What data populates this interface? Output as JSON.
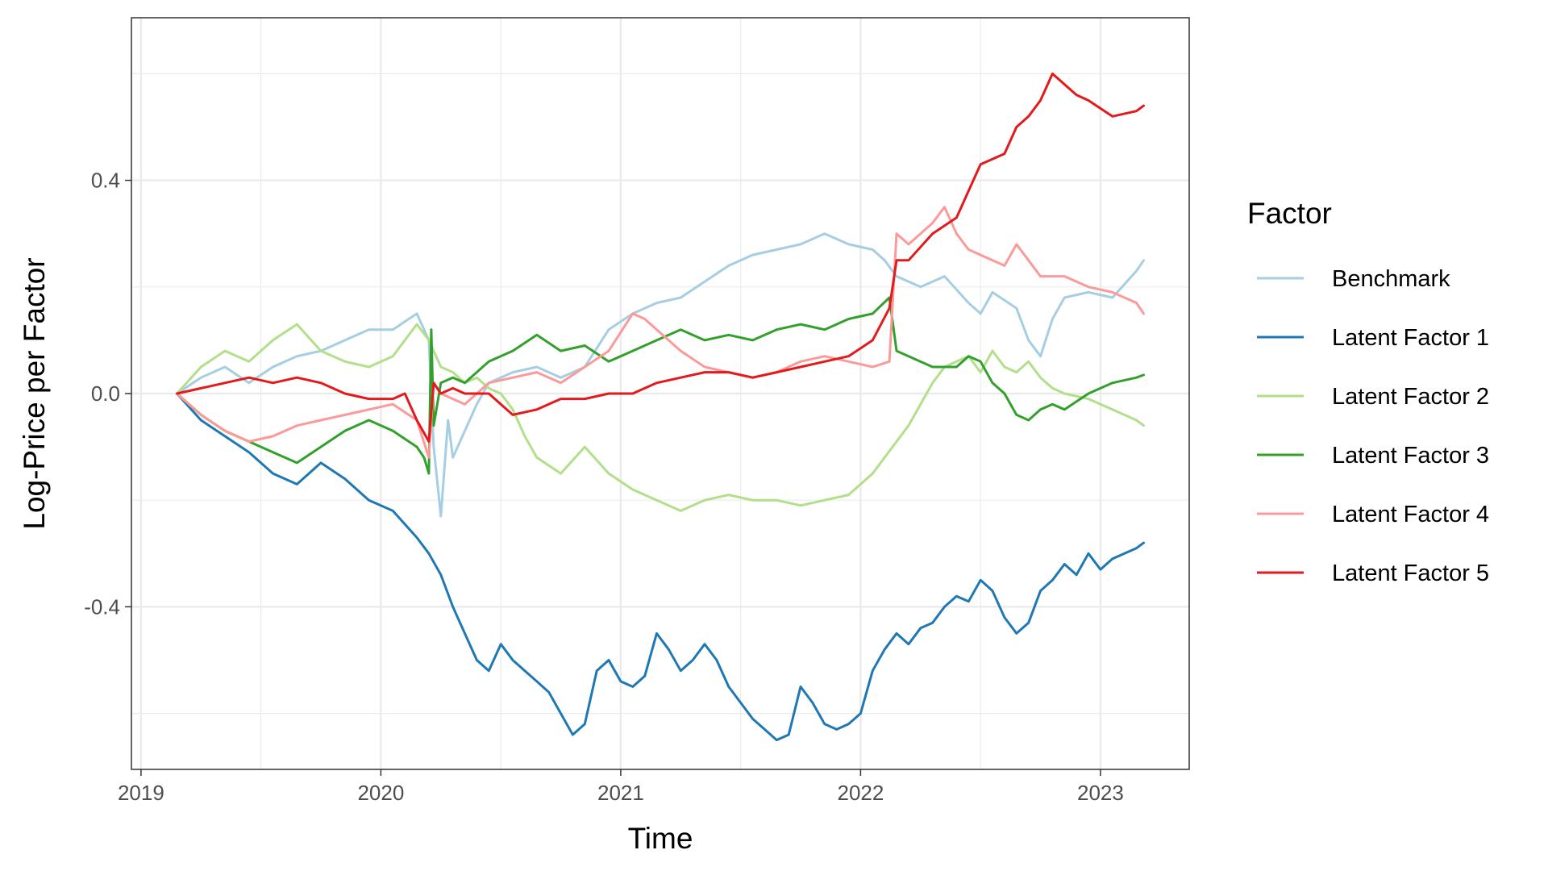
{
  "chart_data": {
    "type": "line",
    "title": "",
    "xlabel": "Time",
    "ylabel": "Log-Price per Factor",
    "x_ticks": [
      "2019",
      "2020",
      "2021",
      "2022",
      "2023"
    ],
    "x_tick_values": [
      2019.0,
      2020.0,
      2021.0,
      2022.0,
      2023.0
    ],
    "y_ticks": [
      "-0.4",
      "0.0",
      "0.4"
    ],
    "y_tick_values": [
      -0.4,
      0.0,
      0.4
    ],
    "xlim": [
      2018.96,
      2023.37
    ],
    "ylim": [
      -0.705,
      0.705
    ],
    "grid": true,
    "legend": {
      "title": "Factor",
      "position": "right"
    },
    "series": [
      {
        "name": "Benchmark",
        "color": "#a6cee3",
        "x": [
          2019.15,
          2019.25,
          2019.35,
          2019.45,
          2019.55,
          2019.65,
          2019.75,
          2019.85,
          2019.95,
          2020.05,
          2020.15,
          2020.2,
          2020.22,
          2020.25,
          2020.28,
          2020.3,
          2020.35,
          2020.4,
          2020.45,
          2020.55,
          2020.65,
          2020.75,
          2020.85,
          2020.95,
          2021.05,
          2021.15,
          2021.25,
          2021.35,
          2021.45,
          2021.55,
          2021.65,
          2021.75,
          2021.85,
          2021.95,
          2022.05,
          2022.1,
          2022.15,
          2022.25,
          2022.35,
          2022.45,
          2022.5,
          2022.55,
          2022.65,
          2022.7,
          2022.75,
          2022.8,
          2022.85,
          2022.95,
          2023.05,
          2023.15,
          2023.18
        ],
        "y": [
          0.0,
          0.03,
          0.05,
          0.02,
          0.05,
          0.07,
          0.08,
          0.1,
          0.12,
          0.12,
          0.15,
          0.1,
          -0.1,
          -0.23,
          -0.05,
          -0.12,
          -0.07,
          -0.02,
          0.02,
          0.04,
          0.05,
          0.03,
          0.05,
          0.12,
          0.15,
          0.17,
          0.18,
          0.21,
          0.24,
          0.26,
          0.27,
          0.28,
          0.3,
          0.28,
          0.27,
          0.25,
          0.22,
          0.2,
          0.22,
          0.17,
          0.15,
          0.19,
          0.16,
          0.1,
          0.07,
          0.14,
          0.18,
          0.19,
          0.18,
          0.23,
          0.25
        ]
      },
      {
        "name": "Latent Factor 1",
        "color": "#1f78b4",
        "x": [
          2019.15,
          2019.25,
          2019.35,
          2019.45,
          2019.55,
          2019.65,
          2019.75,
          2019.85,
          2019.95,
          2020.05,
          2020.15,
          2020.2,
          2020.25,
          2020.3,
          2020.35,
          2020.4,
          2020.45,
          2020.5,
          2020.55,
          2020.6,
          2020.65,
          2020.7,
          2020.75,
          2020.8,
          2020.85,
          2020.9,
          2020.95,
          2021.0,
          2021.05,
          2021.1,
          2021.15,
          2021.2,
          2021.25,
          2021.3,
          2021.35,
          2021.4,
          2021.45,
          2021.5,
          2021.55,
          2021.6,
          2021.65,
          2021.7,
          2021.75,
          2021.8,
          2021.85,
          2021.9,
          2021.95,
          2022.0,
          2022.05,
          2022.1,
          2022.15,
          2022.2,
          2022.25,
          2022.3,
          2022.35,
          2022.4,
          2022.45,
          2022.5,
          2022.55,
          2022.6,
          2022.65,
          2022.7,
          2022.75,
          2022.8,
          2022.85,
          2022.9,
          2022.95,
          2023.0,
          2023.05,
          2023.1,
          2023.15,
          2023.18
        ],
        "y": [
          0.0,
          -0.05,
          -0.08,
          -0.11,
          -0.15,
          -0.17,
          -0.13,
          -0.16,
          -0.2,
          -0.22,
          -0.27,
          -0.3,
          -0.34,
          -0.4,
          -0.45,
          -0.5,
          -0.52,
          -0.47,
          -0.5,
          -0.52,
          -0.54,
          -0.56,
          -0.6,
          -0.64,
          -0.62,
          -0.52,
          -0.5,
          -0.54,
          -0.55,
          -0.53,
          -0.45,
          -0.48,
          -0.52,
          -0.5,
          -0.47,
          -0.5,
          -0.55,
          -0.58,
          -0.61,
          -0.63,
          -0.65,
          -0.64,
          -0.55,
          -0.58,
          -0.62,
          -0.63,
          -0.62,
          -0.6,
          -0.52,
          -0.48,
          -0.45,
          -0.47,
          -0.44,
          -0.43,
          -0.4,
          -0.38,
          -0.39,
          -0.35,
          -0.37,
          -0.42,
          -0.45,
          -0.43,
          -0.37,
          -0.35,
          -0.32,
          -0.34,
          -0.3,
          -0.33,
          -0.31,
          -0.3,
          -0.29,
          -0.28
        ]
      },
      {
        "name": "Latent Factor 2",
        "color": "#b2df8a",
        "x": [
          2019.15,
          2019.25,
          2019.35,
          2019.45,
          2019.55,
          2019.65,
          2019.75,
          2019.85,
          2019.95,
          2020.05,
          2020.15,
          2020.2,
          2020.25,
          2020.3,
          2020.35,
          2020.4,
          2020.45,
          2020.5,
          2020.55,
          2020.6,
          2020.65,
          2020.75,
          2020.85,
          2020.95,
          2021.05,
          2021.15,
          2021.25,
          2021.35,
          2021.45,
          2021.55,
          2021.65,
          2021.75,
          2021.85,
          2021.95,
          2022.0,
          2022.05,
          2022.1,
          2022.15,
          2022.2,
          2022.25,
          2022.3,
          2022.35,
          2022.4,
          2022.45,
          2022.5,
          2022.55,
          2022.6,
          2022.65,
          2022.7,
          2022.75,
          2022.8,
          2022.85,
          2022.95,
          2023.05,
          2023.15,
          2023.18
        ],
        "y": [
          0.0,
          0.05,
          0.08,
          0.06,
          0.1,
          0.13,
          0.08,
          0.06,
          0.05,
          0.07,
          0.13,
          0.1,
          0.05,
          0.04,
          0.02,
          0.03,
          0.01,
          0.0,
          -0.03,
          -0.08,
          -0.12,
          -0.15,
          -0.1,
          -0.15,
          -0.18,
          -0.2,
          -0.22,
          -0.2,
          -0.19,
          -0.2,
          -0.2,
          -0.21,
          -0.2,
          -0.19,
          -0.17,
          -0.15,
          -0.12,
          -0.09,
          -0.06,
          -0.02,
          0.02,
          0.05,
          0.06,
          0.07,
          0.04,
          0.08,
          0.05,
          0.04,
          0.06,
          0.03,
          0.01,
          0.0,
          -0.01,
          -0.03,
          -0.05,
          -0.06
        ]
      },
      {
        "name": "Latent Factor 3",
        "color": "#33a02c",
        "x": [
          2019.15,
          2019.25,
          2019.35,
          2019.45,
          2019.55,
          2019.65,
          2019.75,
          2019.85,
          2019.95,
          2020.05,
          2020.15,
          2020.18,
          2020.2,
          2020.21,
          2020.22,
          2020.25,
          2020.3,
          2020.35,
          2020.45,
          2020.55,
          2020.65,
          2020.75,
          2020.85,
          2020.95,
          2021.05,
          2021.15,
          2021.25,
          2021.35,
          2021.45,
          2021.55,
          2021.65,
          2021.75,
          2021.85,
          2021.95,
          2022.05,
          2022.12,
          2022.15,
          2022.2,
          2022.3,
          2022.4,
          2022.45,
          2022.5,
          2022.55,
          2022.6,
          2022.65,
          2022.7,
          2022.75,
          2022.8,
          2022.85,
          2022.95,
          2023.05,
          2023.15,
          2023.18
        ],
        "y": [
          0.0,
          -0.04,
          -0.07,
          -0.09,
          -0.11,
          -0.13,
          -0.1,
          -0.07,
          -0.05,
          -0.07,
          -0.1,
          -0.12,
          -0.15,
          0.12,
          -0.06,
          0.02,
          0.03,
          0.02,
          0.06,
          0.08,
          0.11,
          0.08,
          0.09,
          0.06,
          0.08,
          0.1,
          0.12,
          0.1,
          0.11,
          0.1,
          0.12,
          0.13,
          0.12,
          0.14,
          0.15,
          0.18,
          0.08,
          0.07,
          0.05,
          0.05,
          0.07,
          0.06,
          0.02,
          0.0,
          -0.04,
          -0.05,
          -0.03,
          -0.02,
          -0.03,
          0.0,
          0.02,
          0.03,
          0.035
        ]
      },
      {
        "name": "Latent Factor 4",
        "color": "#fb9a99",
        "x": [
          2019.15,
          2019.25,
          2019.35,
          2019.45,
          2019.55,
          2019.65,
          2019.75,
          2019.85,
          2019.95,
          2020.05,
          2020.15,
          2020.2,
          2020.22,
          2020.25,
          2020.3,
          2020.35,
          2020.45,
          2020.55,
          2020.65,
          2020.75,
          2020.85,
          2020.95,
          2021.05,
          2021.1,
          2021.15,
          2021.25,
          2021.35,
          2021.45,
          2021.55,
          2021.65,
          2021.75,
          2021.85,
          2021.95,
          2022.05,
          2022.12,
          2022.15,
          2022.2,
          2022.3,
          2022.35,
          2022.4,
          2022.45,
          2022.5,
          2022.55,
          2022.6,
          2022.65,
          2022.7,
          2022.75,
          2022.85,
          2022.95,
          2023.05,
          2023.15,
          2023.18
        ],
        "y": [
          0.0,
          -0.04,
          -0.07,
          -0.09,
          -0.08,
          -0.06,
          -0.05,
          -0.04,
          -0.03,
          -0.02,
          -0.05,
          -0.12,
          0.02,
          0.0,
          -0.01,
          -0.02,
          0.02,
          0.03,
          0.04,
          0.02,
          0.05,
          0.08,
          0.15,
          0.14,
          0.12,
          0.08,
          0.05,
          0.04,
          0.03,
          0.04,
          0.06,
          0.07,
          0.06,
          0.05,
          0.06,
          0.3,
          0.28,
          0.32,
          0.35,
          0.3,
          0.27,
          0.26,
          0.25,
          0.24,
          0.28,
          0.25,
          0.22,
          0.22,
          0.2,
          0.19,
          0.17,
          0.15
        ]
      },
      {
        "name": "Latent Factor 5",
        "color": "#e31a1c",
        "x": [
          2019.15,
          2019.25,
          2019.35,
          2019.45,
          2019.55,
          2019.65,
          2019.75,
          2019.85,
          2019.95,
          2020.05,
          2020.1,
          2020.15,
          2020.2,
          2020.22,
          2020.25,
          2020.3,
          2020.35,
          2020.45,
          2020.55,
          2020.65,
          2020.75,
          2020.85,
          2020.95,
          2021.05,
          2021.15,
          2021.25,
          2021.35,
          2021.45,
          2021.55,
          2021.65,
          2021.75,
          2021.85,
          2021.95,
          2022.05,
          2022.12,
          2022.15,
          2022.2,
          2022.3,
          2022.4,
          2022.45,
          2022.5,
          2022.55,
          2022.6,
          2022.65,
          2022.7,
          2022.75,
          2022.8,
          2022.85,
          2022.9,
          2022.95,
          2023.05,
          2023.15,
          2023.18
        ],
        "y": [
          0.0,
          0.01,
          0.02,
          0.03,
          0.02,
          0.03,
          0.02,
          0.0,
          -0.01,
          -0.01,
          0.0,
          -0.05,
          -0.09,
          0.02,
          0.0,
          0.01,
          0.0,
          0.0,
          -0.04,
          -0.03,
          -0.01,
          -0.01,
          0.0,
          0.0,
          0.02,
          0.03,
          0.04,
          0.04,
          0.03,
          0.04,
          0.05,
          0.06,
          0.07,
          0.1,
          0.16,
          0.25,
          0.25,
          0.3,
          0.33,
          0.38,
          0.43,
          0.44,
          0.45,
          0.5,
          0.52,
          0.55,
          0.6,
          0.58,
          0.56,
          0.55,
          0.52,
          0.53,
          0.54
        ]
      }
    ]
  }
}
